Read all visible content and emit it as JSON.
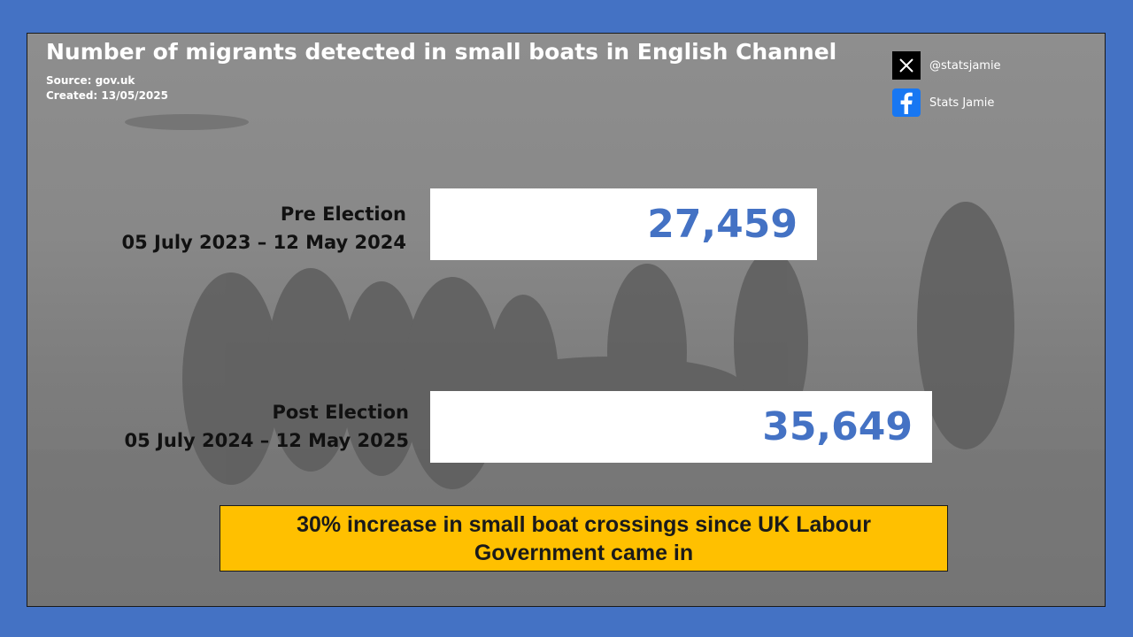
{
  "header": {
    "title": "Number of migrants detected in small boats in English Channel",
    "source": "Source: gov.uk",
    "created": "Created: 13/05/2025"
  },
  "social": {
    "x_handle": "@statsjamie",
    "facebook_name": "Stats Jamie",
    "x_icon": "x-logo-icon",
    "facebook_icon": "facebook-logo-icon"
  },
  "callout": {
    "text": "30% increase in small boat crossings since UK Labour Government came in"
  },
  "colors": {
    "page_background": "#4472c4",
    "value_text": "#4472c4",
    "value_box": "#ffffff",
    "callout_background": "#ffc000"
  },
  "chart_data": {
    "type": "bar",
    "orientation": "horizontal",
    "title": "Number of migrants detected in small boats in English Channel",
    "categories": [
      {
        "name": "Pre Election",
        "period": "05 July 2023 – 12 May 2024"
      },
      {
        "name": "Post Election",
        "period": "05 July 2024 – 12 May 2025"
      }
    ],
    "values": [
      27459,
      35649
    ],
    "value_labels": [
      "27,459",
      "35,649"
    ],
    "grid": false,
    "legend": "none"
  }
}
